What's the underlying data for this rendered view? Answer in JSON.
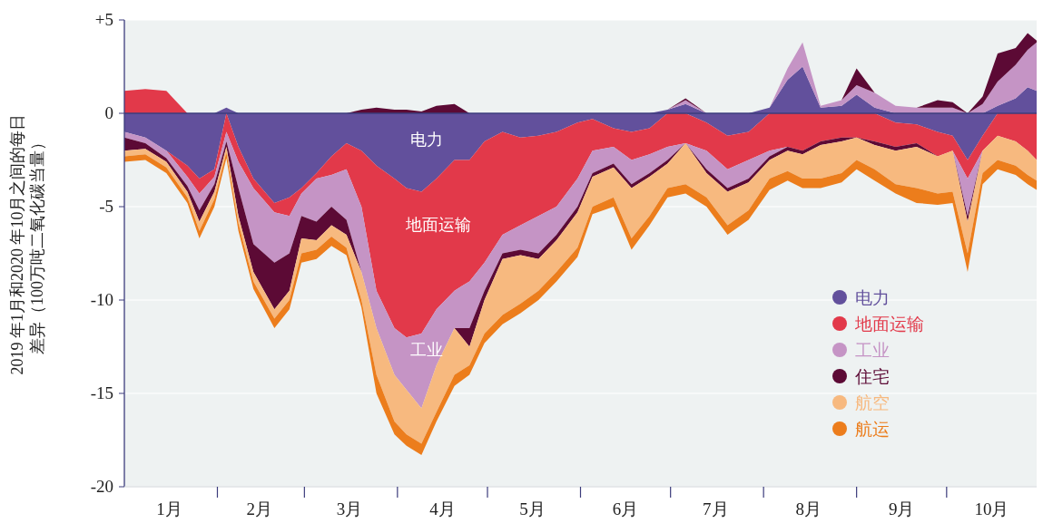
{
  "chart_data": [
    {
      "type": "area",
      "stacked": true,
      "ylabel": "2019 年1月和2020 年10月之间的每日差异（100万吨二氧化碳当量）",
      "x": [
        "2020-01-01",
        "2020-01-08",
        "2020-01-15",
        "2020-01-22",
        "2020-01-26",
        "2020-01-31",
        "2020-02-04",
        "2020-02-08",
        "2020-02-13",
        "2020-02-20",
        "2020-02-25",
        "2020-02-29",
        "2020-03-05",
        "2020-03-10",
        "2020-03-15",
        "2020-03-20",
        "2020-03-25",
        "2020-03-31",
        "2020-04-04",
        "2020-04-09",
        "2020-04-14",
        "2020-04-20",
        "2020-04-25",
        "2020-04-30",
        "2020-05-06",
        "2020-05-12",
        "2020-05-18",
        "2020-05-24",
        "2020-05-31",
        "2020-06-05",
        "2020-06-12",
        "2020-06-18",
        "2020-06-24",
        "2020-06-30",
        "2020-07-06",
        "2020-07-13",
        "2020-07-20",
        "2020-07-27",
        "2020-08-03",
        "2020-08-09",
        "2020-08-14",
        "2020-08-20",
        "2020-08-27",
        "2020-09-01",
        "2020-09-07",
        "2020-09-14",
        "2020-09-21",
        "2020-09-28",
        "2020-10-03",
        "2020-10-08",
        "2020-10-13",
        "2020-10-18",
        "2020-10-24",
        "2020-10-28",
        "2020-10-31"
      ],
      "series": [
        {
          "name": "电力",
          "color": "#62509c",
          "values": [
            -1.0,
            -1.3,
            -2.0,
            -2.8,
            -3.5,
            -3.0,
            0,
            -1.8,
            -3.5,
            -4.8,
            -4.5,
            -4.0,
            -3.2,
            -2.3,
            -1.6,
            -2.0,
            -2.8,
            -3.5,
            -4.0,
            -4.2,
            -3.5,
            -2.5,
            -2.5,
            -1.5,
            -1.0,
            -1.3,
            -1.2,
            -1.0,
            -0.5,
            -0.3,
            -0.8,
            -1.0,
            -0.8,
            0,
            0,
            -0.5,
            -1.2,
            -1.0,
            0,
            0,
            0,
            0,
            0,
            0,
            0,
            -0.5,
            -0.6,
            -1.0,
            -1.2,
            -2.5,
            -1.2,
            0,
            0,
            0,
            0
          ]
        },
        {
          "name": "地面运输",
          "color": "#e2394a",
          "values": [
            0,
            0,
            0,
            -0.6,
            -0.8,
            -0.4,
            -1.0,
            -0.8,
            -0.5,
            -0.5,
            -1.0,
            -0.3,
            -0.3,
            -1.0,
            -1.4,
            -3.0,
            -6.7,
            -8.0,
            -8.0,
            -7.6,
            -7.0,
            -7.0,
            -6.5,
            -6.5,
            -5.5,
            -4.7,
            -4.3,
            -4.0,
            -3.0,
            -1.7,
            -1.0,
            -1.5,
            -1.4,
            -1.8,
            -1.6,
            -1.5,
            -1.8,
            -1.5,
            -2.0,
            -1.8,
            -2.0,
            -1.5,
            -1.3,
            -1.3,
            -1.5,
            -1.3,
            -1.0,
            -1.3,
            -0.8,
            -1.0,
            -0.8,
            -1.2,
            -1.5,
            -2.0,
            -2.5
          ]
        },
        {
          "name": "工业",
          "color": "#c594c5",
          "values": [
            -0.3,
            -0.3,
            -0.4,
            -0.5,
            -0.9,
            -0.4,
            -0.5,
            -1.4,
            -3.0,
            -2.7,
            -2.0,
            -1.2,
            -2.3,
            -1.7,
            -2.7,
            -3.5,
            -2.0,
            -2.5,
            -2.8,
            -4.0,
            -3.0,
            -2.0,
            -2.5,
            -1.5,
            -1.0,
            -1.3,
            -2.0,
            -1.5,
            -1.5,
            -1.2,
            -0.9,
            -1.3,
            -1.0,
            -0.7,
            0,
            -1.0,
            -1.0,
            -1.0,
            -0.3,
            0,
            0,
            0,
            0,
            0,
            0,
            0,
            0,
            0,
            0,
            -2.0,
            0,
            0,
            0,
            0,
            0
          ]
        },
        {
          "name": "住宅",
          "color": "#5c0a35",
          "values": [
            -0.7,
            -0.3,
            -0.2,
            -0.3,
            -0.6,
            -0.4,
            -0.3,
            -1.5,
            -1.5,
            -2.5,
            -2.0,
            -1.2,
            -1.0,
            -1.0,
            -0.8,
            0,
            0,
            0,
            0,
            0,
            0,
            0,
            -1.0,
            -0.5,
            -0.3,
            -0.3,
            -0.3,
            -0.3,
            -0.3,
            -0.2,
            -0.2,
            -0.2,
            -0.2,
            -0.2,
            0,
            -0.2,
            -0.2,
            -0.2,
            -0.2,
            -0.2,
            -0.2,
            -0.2,
            -0.2,
            0,
            -0.2,
            -0.2,
            -0.2,
            0,
            0,
            -0.3,
            0,
            0,
            0,
            0,
            0
          ]
        },
        {
          "name": "航空",
          "color": "#f7b97f",
          "values": [
            -0.3,
            -0.3,
            -0.3,
            -0.3,
            -0.5,
            -0.4,
            -0.3,
            -0.4,
            -0.5,
            -0.5,
            -0.5,
            -0.8,
            -0.5,
            -0.6,
            -0.7,
            -1.5,
            -2.5,
            -2.5,
            -2.4,
            -1.9,
            -2.5,
            -2.5,
            -1.0,
            -1.8,
            -3.0,
            -2.6,
            -1.7,
            -1.7,
            -1.9,
            -1.6,
            -1.6,
            -2.7,
            -2.1,
            -1.3,
            -2.2,
            -1.3,
            -1.8,
            -1.5,
            -1.0,
            -1.1,
            -1.3,
            -1.8,
            -1.7,
            -1.2,
            -1.3,
            -1.8,
            -2.2,
            -2.0,
            -2.2,
            -1.7,
            -1.2,
            -1.3,
            -1.3,
            -1.3,
            -1.1
          ]
        },
        {
          "name": "航运",
          "color": "#ec7d1c",
          "values": [
            -0.3,
            -0.3,
            -0.3,
            -0.3,
            -0.4,
            -0.4,
            -0.3,
            -0.4,
            -0.4,
            -0.5,
            -0.5,
            -0.5,
            -0.5,
            -0.5,
            -0.4,
            -0.4,
            -1.0,
            -0.7,
            -0.6,
            -0.6,
            -0.5,
            -0.6,
            -0.5,
            -0.5,
            -0.5,
            -0.5,
            -0.5,
            -0.5,
            -0.5,
            -0.4,
            -0.5,
            -0.6,
            -0.5,
            -0.5,
            -0.5,
            -0.5,
            -0.5,
            -0.5,
            -0.6,
            -0.5,
            -0.5,
            -0.5,
            -0.5,
            -0.5,
            -0.6,
            -0.5,
            -0.8,
            -0.6,
            -0.6,
            -1.0,
            -0.6,
            -0.5,
            -0.5,
            -0.5,
            -0.5
          ]
        }
      ],
      "xlim": [
        "2020-01-01",
        "2020-10-31"
      ],
      "xticks": [
        {
          "value": "2020-01-16",
          "label": "1月"
        },
        {
          "value": "2020-02-01",
          "label": null
        },
        {
          "value": "2020-02-15",
          "label": "2月"
        },
        {
          "value": "2020-03-01",
          "label": null
        },
        {
          "value": "2020-03-16",
          "label": "3月"
        },
        {
          "value": "2020-04-01",
          "label": null
        },
        {
          "value": "2020-04-16",
          "label": "4月"
        },
        {
          "value": "2020-05-01",
          "label": null
        },
        {
          "value": "2020-05-16",
          "label": "5月"
        },
        {
          "value": "2020-06-01",
          "label": null
        },
        {
          "value": "2020-06-16",
          "label": "6月"
        },
        {
          "value": "2020-07-01",
          "label": null
        },
        {
          "value": "2020-07-16",
          "label": "7月"
        },
        {
          "value": "2020-08-01",
          "label": null
        },
        {
          "value": "2020-08-16",
          "label": "8月"
        },
        {
          "value": "2020-09-01",
          "label": null
        },
        {
          "value": "2020-09-16",
          "label": "9月"
        },
        {
          "value": "2020-10-01",
          "label": null
        },
        {
          "value": "2020-10-16",
          "label": "10月"
        }
      ],
      "ylim": [
        -20,
        5
      ],
      "yticks": [
        -20,
        -15,
        -10,
        -5,
        0,
        {
          "value": 5,
          "label": "+5"
        }
      ],
      "grid": "y",
      "legend": "right",
      "ref_lines": [
        {
          "axis": "y",
          "value": 0,
          "color": "#3c3c7c"
        }
      ],
      "annotations": [
        "电力",
        "地面运输",
        "工业"
      ]
    },
    {
      "type": "area",
      "stacked": true,
      "tick_labels": false,
      "x": [
        "2020-01-01",
        "2020-01-08",
        "2020-01-15",
        "2020-01-22",
        "2020-01-31",
        "2020-02-04",
        "2020-02-08",
        "2020-03-15",
        "2020-03-20",
        "2020-03-25",
        "2020-03-31",
        "2020-04-04",
        "2020-04-09",
        "2020-04-14",
        "2020-04-20",
        "2020-04-25",
        "2020-06-24",
        "2020-06-30",
        "2020-07-06",
        "2020-07-13",
        "2020-07-27",
        "2020-08-03",
        "2020-08-09",
        "2020-08-14",
        "2020-08-20",
        "2020-08-27",
        "2020-09-01",
        "2020-09-07",
        "2020-09-14",
        "2020-09-21",
        "2020-09-28",
        "2020-10-03",
        "2020-10-08",
        "2020-10-13",
        "2020-10-18",
        "2020-10-24",
        "2020-10-28",
        "2020-10-31"
      ],
      "series": [
        {
          "color": "#62509c",
          "values": [
            null,
            null,
            null,
            null,
            0,
            0.3,
            0,
            null,
            null,
            null,
            null,
            null,
            null,
            null,
            null,
            null,
            0,
            0.2,
            0.5,
            0,
            0,
            0.3,
            1.8,
            2.5,
            0.3,
            0.4,
            1.0,
            0.3,
            0,
            null,
            null,
            null,
            null,
            0,
            0.4,
            0.8,
            1.4,
            1.2
          ]
        },
        {
          "color": "#e2394a",
          "values": [
            1.2,
            1.3,
            1.2,
            0,
            null,
            null,
            null,
            null,
            null,
            null,
            null,
            null,
            null,
            null,
            null,
            null,
            null,
            null,
            null,
            null,
            null,
            null,
            null,
            null,
            null,
            null,
            null,
            null,
            null,
            null,
            null,
            null,
            null,
            null,
            null,
            null,
            null,
            null
          ]
        },
        {
          "color": "#c594c5",
          "values": [
            null,
            null,
            null,
            null,
            null,
            null,
            null,
            null,
            null,
            null,
            null,
            null,
            null,
            null,
            null,
            null,
            null,
            0,
            0.2,
            0,
            null,
            0,
            0.6,
            1.3,
            0.1,
            0.3,
            0.5,
            0.8,
            0.4,
            0.3,
            0.3,
            0.3,
            0,
            0.5,
            1.3,
            1.8,
            2.0,
            2.6
          ]
        },
        {
          "color": "#5c0a35",
          "values": [
            null,
            null,
            null,
            null,
            null,
            null,
            null,
            0,
            0.2,
            0.3,
            0.2,
            0.2,
            0.1,
            0.4,
            0.5,
            0,
            null,
            0,
            0.1,
            0,
            null,
            null,
            null,
            null,
            null,
            0,
            0.9,
            0,
            null,
            0,
            0.4,
            0.3,
            0,
            0.4,
            1.5,
            0.9,
            0.9,
            0.1
          ]
        }
      ],
      "xlim": [
        "2020-01-01",
        "2020-10-31"
      ],
      "ylim": [
        -20,
        5
      ]
    }
  ]
}
